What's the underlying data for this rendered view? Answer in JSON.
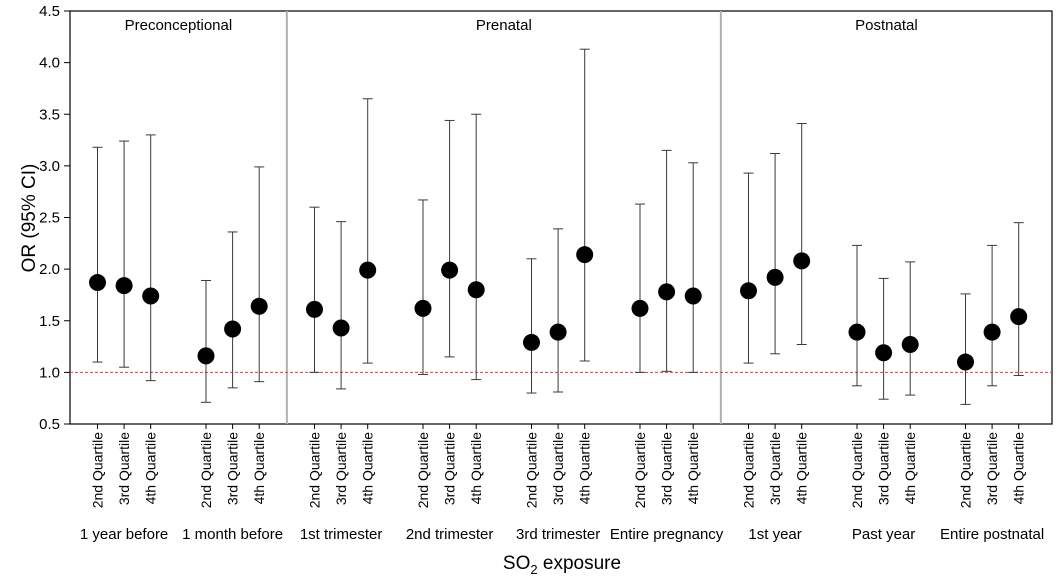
{
  "chart_data": {
    "type": "scatter",
    "subtype": "point-range (odds ratio with 95% CI)",
    "ylabel": "OR (95% CI)",
    "xlabel": {
      "main": "SO",
      "sub": "2",
      "rest": " exposure"
    },
    "ylim": [
      0.5,
      4.5
    ],
    "yticks": [
      0.5,
      1.0,
      1.5,
      2.0,
      2.5,
      3.0,
      3.5,
      4.0,
      4.5
    ],
    "ytick_labels": [
      "0.5",
      "1.0",
      "1.5",
      "2.0",
      "2.5",
      "3.0",
      "3.5",
      "4.0",
      "4.5"
    ],
    "reference_line": {
      "y": 1.0,
      "color": "#e23b3b",
      "style": "dashed"
    },
    "periods": [
      {
        "label": "Preconceptional",
        "groups": [
          "1 year before",
          "1 month before"
        ]
      },
      {
        "label": "Prenatal",
        "groups": [
          "1st trimester",
          "2nd trimester",
          "3rd trimester",
          "Entire pregnancy"
        ]
      },
      {
        "label": "Postnatal",
        "groups": [
          "1st year",
          "Past year",
          "Entire postnatal"
        ]
      }
    ],
    "quartiles": [
      "2nd Quartile",
      "3rd Quartile",
      "4th Quartile"
    ],
    "groups": [
      {
        "label": "1 year before",
        "or": [
          1.87,
          1.84,
          1.74
        ],
        "lower": [
          1.1,
          1.05,
          0.92
        ],
        "upper": [
          3.18,
          3.24,
          3.3
        ]
      },
      {
        "label": "1 month before",
        "or": [
          1.16,
          1.42,
          1.64
        ],
        "lower": [
          0.71,
          0.85,
          0.91
        ],
        "upper": [
          1.89,
          2.36,
          2.99
        ]
      },
      {
        "label": "1st trimester",
        "or": [
          1.61,
          1.43,
          1.99
        ],
        "lower": [
          1.0,
          0.84,
          1.09
        ],
        "upper": [
          2.6,
          2.46,
          3.65
        ]
      },
      {
        "label": "2nd trimester",
        "or": [
          1.62,
          1.99,
          1.8
        ],
        "lower": [
          0.98,
          1.15,
          0.93
        ],
        "upper": [
          2.67,
          3.44,
          3.5
        ]
      },
      {
        "label": "3rd trimester",
        "or": [
          1.29,
          1.39,
          2.14
        ],
        "lower": [
          0.8,
          0.81,
          1.11
        ],
        "upper": [
          2.1,
          2.39,
          4.13
        ]
      },
      {
        "label": "Entire pregnancy",
        "or": [
          1.62,
          1.78,
          1.74
        ],
        "lower": [
          1.0,
          1.01,
          1.0
        ],
        "upper": [
          2.63,
          3.15,
          3.03
        ]
      },
      {
        "label": "1st year",
        "or": [
          1.79,
          1.92,
          2.08
        ],
        "lower": [
          1.09,
          1.18,
          1.27
        ],
        "upper": [
          2.93,
          3.12,
          3.41
        ]
      },
      {
        "label": "Past year",
        "or": [
          1.39,
          1.19,
          1.27
        ],
        "lower": [
          0.87,
          0.74,
          0.78
        ],
        "upper": [
          2.23,
          1.91,
          2.07
        ]
      },
      {
        "label": "Entire postnatal",
        "or": [
          1.1,
          1.39,
          1.54
        ],
        "lower": [
          0.69,
          0.87,
          0.97
        ],
        "upper": [
          1.76,
          2.23,
          2.45
        ]
      }
    ],
    "colors": {
      "marker": "#000000",
      "whisker": "#3a3a3a",
      "divider": "#b0b0b0",
      "axis": "#000000"
    }
  }
}
